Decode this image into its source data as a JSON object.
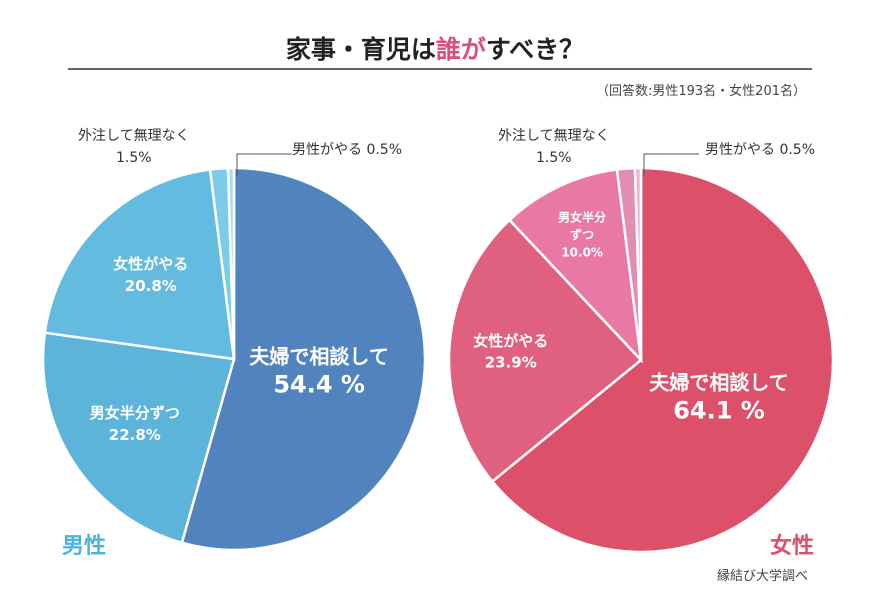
{
  "title_prefix": "家事・育児は",
  "title_highlight": "誰が",
  "title_suffix": "すべき？",
  "note": "（回答数:男性193名・女性201名）",
  "source": "縁結び大学調べ",
  "colors": {
    "highlight": "#d9507a",
    "male_label": "#4fb2dc",
    "female_label": "#dc4f6e"
  },
  "chart_data": [
    {
      "type": "pie",
      "name": "男性",
      "start": "12 o'clock, clockwise",
      "categories": [
        "夫婦で相談して",
        "男女半分ずつ",
        "女性がやる",
        "外注して無理なく",
        "男性がやる"
      ],
      "values": [
        54.4,
        22.8,
        20.8,
        1.5,
        0.5
      ],
      "labels": [
        "54.4 %",
        "22.8%",
        "20.8%",
        "1.5%",
        "0.5%"
      ],
      "colors": [
        "#5183bf",
        "#5cb4db",
        "#63bbdf",
        "#7ccbe8",
        "#a8def2"
      ]
    },
    {
      "type": "pie",
      "name": "女性",
      "start": "12 o'clock, clockwise",
      "categories": [
        "夫婦で相談して",
        "女性がやる",
        "男女半分ずつ",
        "外注して無理なく",
        "男性がやる"
      ],
      "values": [
        64.1,
        23.9,
        10.0,
        1.5,
        0.5
      ],
      "labels": [
        "64.1 %",
        "23.9%",
        "10.0%",
        "1.5%",
        "0.5%"
      ],
      "colors": [
        "#dd5069",
        "#e0617f",
        "#e779a2",
        "#e38cb4",
        "#f2b3cc"
      ]
    }
  ]
}
